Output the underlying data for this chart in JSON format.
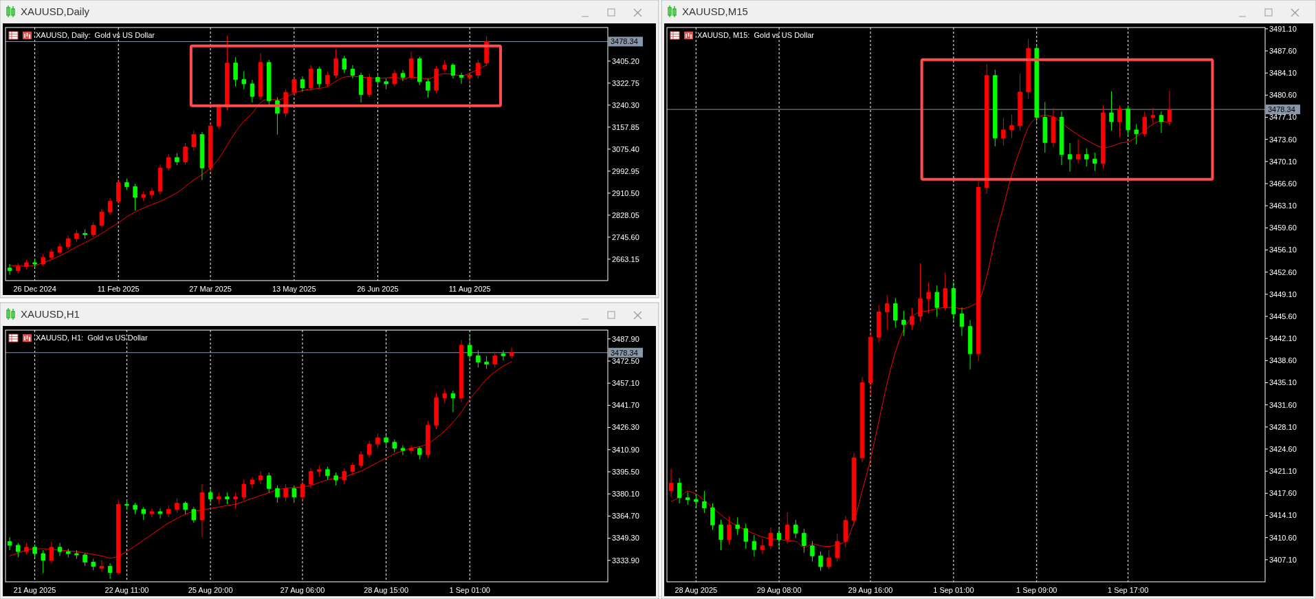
{
  "chart_data": [
    {
      "type": "candlestick",
      "title": "XAUUSD,Daily",
      "subtitle": "XAUUSD, Daily:  Gold vs US Dollar",
      "categories": [
        null,
        null,
        null,
        "26 Dec 2024",
        null,
        null,
        null,
        null,
        null,
        null,
        null,
        null,
        null,
        "11 Feb 2025",
        null,
        null,
        null,
        null,
        null,
        null,
        null,
        null,
        null,
        null,
        "27 Mar 2025",
        null,
        null,
        null,
        null,
        null,
        null,
        null,
        null,
        null,
        "13 May 2025",
        null,
        null,
        null,
        null,
        null,
        null,
        null,
        null,
        null,
        "26 Jun 2025",
        null,
        null,
        null,
        null,
        null,
        null,
        null,
        null,
        null,
        null,
        "11 Aug 2025",
        null,
        null,
        null,
        null,
        null,
        null,
        null,
        null,
        null,
        null,
        null,
        null,
        null,
        null,
        null,
        null
      ],
      "ohlc": [
        [
          2630,
          2645,
          2605,
          2620
        ],
        [
          2620,
          2648,
          2610,
          2635
        ],
        [
          2635,
          2662,
          2625,
          2650
        ],
        [
          2650,
          2665,
          2632,
          2645
        ],
        [
          2645,
          2682,
          2638,
          2670
        ],
        [
          2670,
          2702,
          2660,
          2690
        ],
        [
          2690,
          2722,
          2680,
          2710
        ],
        [
          2710,
          2752,
          2700,
          2740
        ],
        [
          2740,
          2772,
          2728,
          2760
        ],
        [
          2760,
          2775,
          2740,
          2755
        ],
        [
          2755,
          2802,
          2745,
          2790
        ],
        [
          2790,
          2852,
          2780,
          2840
        ],
        [
          2840,
          2892,
          2830,
          2880
        ],
        [
          2880,
          2962,
          2870,
          2950
        ],
        [
          2950,
          2965,
          2922,
          2935
        ],
        [
          2935,
          2945,
          2845,
          2895
        ],
        [
          2895,
          2918,
          2880,
          2905
        ],
        [
          2905,
          2930,
          2890,
          2918
        ],
        [
          2918,
          3018,
          2905,
          3005
        ],
        [
          3005,
          3058,
          2995,
          3044
        ],
        [
          3044,
          3060,
          3015,
          3028
        ],
        [
          3028,
          3098,
          3018,
          3084
        ],
        [
          3084,
          3145,
          3070,
          3130
        ],
        [
          3130,
          3140,
          2960,
          3005
        ],
        [
          3005,
          3175,
          2990,
          3162
        ],
        [
          3162,
          3245,
          3150,
          3233
        ],
        [
          3233,
          3501,
          3220,
          3398
        ],
        [
          3398,
          3420,
          3310,
          3336
        ],
        [
          3336,
          3368,
          3300,
          3320
        ],
        [
          3320,
          3335,
          3250,
          3273
        ],
        [
          3273,
          3435,
          3260,
          3400
        ],
        [
          3400,
          3410,
          3240,
          3257
        ],
        [
          3257,
          3270,
          3130,
          3210
        ],
        [
          3210,
          3300,
          3195,
          3288
        ],
        [
          3288,
          3350,
          3275,
          3336
        ],
        [
          3336,
          3348,
          3290,
          3305
        ],
        [
          3305,
          3390,
          3295,
          3375
        ],
        [
          3375,
          3385,
          3305,
          3320
        ],
        [
          3320,
          3365,
          3310,
          3352
        ],
        [
          3352,
          3450,
          3340,
          3414
        ],
        [
          3414,
          3425,
          3360,
          3375
        ],
        [
          3375,
          3390,
          3340,
          3352
        ],
        [
          3352,
          3362,
          3250,
          3280
        ],
        [
          3280,
          3358,
          3270,
          3344
        ],
        [
          3344,
          3360,
          3315,
          3328
        ],
        [
          3328,
          3340,
          3300,
          3320
        ],
        [
          3320,
          3372,
          3310,
          3359
        ],
        [
          3359,
          3372,
          3330,
          3344
        ],
        [
          3344,
          3440,
          3335,
          3414
        ],
        [
          3414,
          3422,
          3315,
          3328
        ],
        [
          3328,
          3340,
          3268,
          3296
        ],
        [
          3296,
          3388,
          3285,
          3375
        ],
        [
          3375,
          3410,
          3365,
          3390
        ],
        [
          3390,
          3398,
          3340,
          3352
        ],
        [
          3352,
          3362,
          3320,
          3344
        ],
        [
          3344,
          3365,
          3315,
          3352
        ],
        [
          3352,
          3410,
          3340,
          3398
        ],
        [
          3398,
          3498,
          3388,
          3478
        ],
        null,
        null,
        null,
        null,
        null,
        null,
        null,
        null,
        null,
        null,
        null,
        null,
        null,
        null
      ],
      "colors": [
        "#00ff00",
        "#ff0000",
        "#ff0000",
        "#00ff00",
        "#ff0000",
        "#ff0000",
        "#ff0000",
        "#ff0000",
        "#ff0000",
        "#00ff00",
        "#ff0000",
        "#ff0000",
        "#ff0000",
        "#ff0000",
        "#00ff00",
        "#00ff00",
        "#ff0000",
        "#ff0000",
        "#ff0000",
        "#ff0000",
        "#00ff00",
        "#ff0000",
        "#ff0000",
        "#00ff00",
        "#ff0000",
        "#ff0000",
        "#ff0000",
        "#00ff00",
        "#00ff00",
        "#00ff00",
        "#ff0000",
        "#00ff00",
        "#00ff00",
        "#ff0000",
        "#ff0000",
        "#00ff00",
        "#ff0000",
        "#00ff00",
        "#ff0000",
        "#ff0000",
        "#00ff00",
        "#00ff00",
        "#00ff00",
        "#ff0000",
        "#00ff00",
        "#00ff00",
        "#ff0000",
        "#00ff00",
        "#ff0000",
        "#00ff00",
        "#00ff00",
        "#ff0000",
        "#ff0000",
        "#00ff00",
        "#00ff00",
        "#ff0000",
        "#ff0000",
        "#ff0000",
        null,
        null,
        null,
        null,
        null,
        null,
        null,
        null,
        null,
        null,
        null,
        null,
        null,
        null
      ],
      "series": [
        {
          "type": "line",
          "color": "#ff0000",
          "values": [
            2640,
            2638,
            2637,
            2640,
            2650,
            2662,
            2676,
            2692,
            2710,
            2725,
            2742,
            2760,
            2780,
            2800,
            2822,
            2840,
            2855,
            2868,
            2880,
            2895,
            2912,
            2935,
            2960,
            2980,
            3005,
            3040,
            3090,
            3140,
            3180,
            3210,
            3250,
            3262,
            3260,
            3270,
            3285,
            3295,
            3300,
            3303,
            3310,
            3330,
            3345,
            3348,
            3345,
            3343,
            3340,
            3342,
            3345,
            3338,
            3345,
            3342,
            3338,
            3350,
            3358,
            3356,
            3350,
            3360,
            3375,
            3390,
            null,
            null,
            null,
            null,
            null,
            null,
            null,
            null,
            null,
            null,
            null,
            null,
            null,
            null
          ]
        }
      ],
      "ylim": [
        2583,
        3531
      ],
      "yticks": [
        {
          "value": 2663.15,
          "label": "2663.15"
        },
        {
          "value": 2745.6,
          "label": "2745.60"
        },
        {
          "value": 2828.05,
          "label": "2828.05"
        },
        {
          "value": 2910.5,
          "label": "2910.50"
        },
        {
          "value": 2992.95,
          "label": "2992.95"
        },
        {
          "value": 3075.4,
          "label": "3075.40"
        },
        {
          "value": 3157.85,
          "label": "3157.85"
        },
        {
          "value": 3240.3,
          "label": "3240.30"
        },
        {
          "value": 3322.75,
          "label": "3322.75"
        },
        {
          "value": 3405.2,
          "label": "3405.20"
        }
      ],
      "grid": "x",
      "ref_lines": [
        {
          "axis": "y",
          "value": 3478.34,
          "label": "3478.34",
          "color": "#8796a8"
        }
      ]
    },
    {
      "type": "candlestick",
      "title": "XAUUSD,H1",
      "subtitle": "XAUUSD, H1:  Gold vs US Dollar",
      "categories": [
        null,
        null,
        null,
        "21 Aug 2025",
        null,
        null,
        null,
        null,
        null,
        null,
        null,
        null,
        null,
        null,
        "22 Aug 11:00",
        null,
        null,
        null,
        null,
        null,
        null,
        null,
        null,
        null,
        "25 Aug 20:00",
        null,
        null,
        null,
        null,
        null,
        null,
        null,
        null,
        null,
        null,
        "27 Aug 06:00",
        null,
        null,
        null,
        null,
        null,
        null,
        null,
        null,
        null,
        "28 Aug 15:00",
        null,
        null,
        null,
        null,
        null,
        null,
        null,
        null,
        null,
        "1 Sep 01:00",
        null,
        null,
        null,
        null,
        null,
        null,
        null,
        null,
        null,
        null,
        null,
        null,
        null,
        null,
        null,
        null
      ],
      "ohlc": [
        [
          3347,
          3350,
          3341,
          3344.4
        ],
        [
          3344.4,
          3346,
          3336,
          3340
        ],
        [
          3340,
          3346,
          3338,
          3343
        ],
        [
          3343,
          3345,
          3336,
          3338.6
        ],
        [
          3338.6,
          3341,
          3325,
          3334
        ],
        [
          3334,
          3347,
          3332,
          3343
        ],
        [
          3343,
          3346,
          3337,
          3340
        ],
        [
          3340,
          3342,
          3336,
          3338.6
        ],
        [
          3338.6,
          3341,
          3335,
          3337.7
        ],
        [
          3337.7,
          3339,
          3330,
          3332.7
        ],
        [
          3332.7,
          3335,
          3327,
          3329.8
        ],
        [
          3328.5,
          3334,
          3326,
          3329.8
        ],
        [
          3329.8,
          3332,
          3321,
          3325.4
        ],
        [
          3325.4,
          3376,
          3324,
          3372.8
        ],
        [
          3372.8,
          3376,
          3369,
          3372.2
        ],
        [
          3372.2,
          3374,
          3366,
          3369.3
        ],
        [
          3369.3,
          3371,
          3362,
          3366.4
        ],
        [
          3366.4,
          3370,
          3364,
          3367.8
        ],
        [
          3367.8,
          3370,
          3363,
          3366.4
        ],
        [
          3366.4,
          3372,
          3364,
          3369.3
        ],
        [
          3369.3,
          3377,
          3367,
          3373.7
        ],
        [
          3373.7,
          3375,
          3366,
          3369.3
        ],
        [
          3369.3,
          3371,
          3360,
          3362
        ],
        [
          3362,
          3387,
          3350,
          3381
        ],
        [
          3381,
          3384,
          3374,
          3376.6
        ],
        [
          3376.6,
          3381,
          3373,
          3378
        ],
        [
          3378,
          3381,
          3373,
          3376.6
        ],
        [
          3376.6,
          3381,
          3370,
          3378
        ],
        [
          3378,
          3390,
          3376,
          3386.9
        ],
        [
          3386.9,
          3392,
          3384,
          3389.8
        ],
        [
          3389.8,
          3396,
          3387,
          3392.7
        ],
        [
          3392.7,
          3395,
          3381,
          3383.9
        ],
        [
          3383.9,
          3386,
          3374,
          3378
        ],
        [
          3378,
          3387,
          3375,
          3383.9
        ],
        [
          3383.9,
          3386,
          3374,
          3378
        ],
        [
          3378,
          3389,
          3375,
          3386.9
        ],
        [
          3386.9,
          3398,
          3384,
          3395.7
        ],
        [
          3395.7,
          3400,
          3392,
          3397
        ],
        [
          3397,
          3399,
          3390,
          3392.7
        ],
        [
          3392.7,
          3395,
          3386,
          3389.8
        ],
        [
          3389.8,
          3398,
          3387,
          3395.7
        ],
        [
          3395.7,
          3402,
          3393,
          3400
        ],
        [
          3400,
          3410,
          3398,
          3407.4
        ],
        [
          3407.4,
          3417,
          3405,
          3414.7
        ],
        [
          3414.7,
          3422,
          3412,
          3419.1
        ],
        [
          3419.1,
          3421,
          3413,
          3416.1
        ],
        [
          3416.1,
          3418,
          3409,
          3411.8
        ],
        [
          3411.8,
          3414,
          3407,
          3410.3
        ],
        [
          3410.3,
          3414,
          3408,
          3411.8
        ],
        [
          3411.8,
          3413,
          3404,
          3407.4
        ],
        [
          3407.4,
          3431,
          3405,
          3427.9
        ],
        [
          3427.9,
          3450,
          3425,
          3446.9
        ],
        [
          3446.9,
          3453,
          3443,
          3449.8
        ],
        [
          3449.8,
          3452,
          3437,
          3446.9
        ],
        [
          3446.9,
          3487,
          3444,
          3483.5
        ],
        [
          3483.5,
          3491,
          3473,
          3476.2
        ],
        [
          3476.2,
          3480,
          3468,
          3471.8
        ],
        [
          3471.8,
          3476,
          3467,
          3470.3
        ],
        [
          3470.3,
          3479,
          3468,
          3476.2
        ],
        [
          3477.5,
          3480,
          3473,
          3476.2
        ],
        [
          3476.2,
          3482,
          3474,
          3478.34
        ],
        null,
        null,
        null,
        null,
        null,
        null,
        null,
        null,
        null,
        null,
        null
      ],
      "colors": [
        "#00ff00",
        "#00ff00",
        "#ff0000",
        "#00ff00",
        "#00ff00",
        "#ff0000",
        "#00ff00",
        "#00ff00",
        "#00ff00",
        "#00ff00",
        "#00ff00",
        "#ff0000",
        "#00ff00",
        "#ff0000",
        "#00ff00",
        "#00ff00",
        "#00ff00",
        "#ff0000",
        "#00ff00",
        "#ff0000",
        "#ff0000",
        "#00ff00",
        "#00ff00",
        "#ff0000",
        "#00ff00",
        "#ff0000",
        "#00ff00",
        "#ff0000",
        "#ff0000",
        "#ff0000",
        "#ff0000",
        "#00ff00",
        "#00ff00",
        "#ff0000",
        "#00ff00",
        "#ff0000",
        "#ff0000",
        "#ff0000",
        "#00ff00",
        "#00ff00",
        "#ff0000",
        "#ff0000",
        "#ff0000",
        "#ff0000",
        "#ff0000",
        "#00ff00",
        "#00ff00",
        "#00ff00",
        "#ff0000",
        "#00ff00",
        "#ff0000",
        "#ff0000",
        "#ff0000",
        "#00ff00",
        "#ff0000",
        "#00ff00",
        "#00ff00",
        "#00ff00",
        "#ff0000",
        "#00ff00",
        "#ff0000",
        null,
        null,
        null,
        null,
        null,
        null,
        null,
        null,
        null,
        null,
        null
      ],
      "series": [
        {
          "type": "line",
          "color": "#ff0000",
          "values": [
            3337,
            3339,
            3341,
            3342,
            3342,
            3341.5,
            3341,
            3340.5,
            3340,
            3339,
            3338,
            3337,
            3335.5,
            3337,
            3340,
            3344,
            3348,
            3352,
            3356,
            3360,
            3363,
            3366,
            3368,
            3369,
            3370,
            3371,
            3372,
            3373,
            3375,
            3377,
            3379,
            3381,
            3383,
            3384,
            3384.5,
            3385,
            3386,
            3388,
            3390,
            3391,
            3392,
            3394,
            3396,
            3399,
            3402,
            3405,
            3408,
            3410,
            3412,
            3413,
            3415,
            3419,
            3424,
            3430,
            3437,
            3446,
            3453,
            3460,
            3465,
            3469,
            3472,
            null,
            null,
            null,
            null,
            null,
            null,
            null,
            null,
            null,
            null,
            null
          ]
        }
      ],
      "ylim": [
        3319,
        3494
      ],
      "yticks": [
        {
          "value": 3333.9,
          "label": "3333.90"
        },
        {
          "value": 3349.3,
          "label": "3349.30"
        },
        {
          "value": 3364.7,
          "label": "3364.70"
        },
        {
          "value": 3380.1,
          "label": "3380.10"
        },
        {
          "value": 3395.5,
          "label": "3395.50"
        },
        {
          "value": 3410.9,
          "label": "3410.90"
        },
        {
          "value": 3426.3,
          "label": "3426.30"
        },
        {
          "value": 3441.7,
          "label": "3441.70"
        },
        {
          "value": 3457.1,
          "label": "3457.10"
        },
        {
          "value": 3472.5,
          "label": "3472.50"
        },
        {
          "value": 3487.9,
          "label": "3487.90"
        }
      ],
      "grid": "x",
      "ref_lines": [
        {
          "axis": "y",
          "value": 3478.34,
          "label": "3478.34",
          "color": "#8796a8"
        }
      ]
    },
    {
      "type": "candlestick",
      "title": "XAUUSD,M15",
      "subtitle": "XAUUSD, M15:  Gold vs US Dollar",
      "categories": [
        null,
        null,
        null,
        "28 Aug 2025",
        null,
        null,
        null,
        null,
        null,
        null,
        null,
        null,
        null,
        "29 Aug 08:00",
        null,
        null,
        null,
        null,
        null,
        null,
        null,
        null,
        null,
        null,
        "29 Aug 16:00",
        null,
        null,
        null,
        null,
        null,
        null,
        null,
        null,
        null,
        "1 Sep 01:00",
        null,
        null,
        null,
        null,
        null,
        null,
        null,
        null,
        null,
        "1 Sep 09:00",
        null,
        null,
        null,
        null,
        null,
        null,
        null,
        null,
        null,
        null,
        "1 Sep 17:00",
        null,
        null,
        null,
        null,
        null,
        null,
        null,
        null,
        null,
        null,
        null,
        null,
        null,
        null,
        null,
        null
      ],
      "ohlc": [
        [
          3418,
          3421.5,
          3417,
          3419.2
        ],
        [
          3419.2,
          3420,
          3416,
          3416.9
        ],
        [
          3416.9,
          3417.8,
          3415.8,
          3416.6
        ],
        [
          3416.6,
          3417.4,
          3415.5,
          3416.3
        ],
        [
          3416.3,
          3418,
          3414.5,
          3415.3
        ],
        [
          3415.3,
          3416,
          3411.8,
          3412.6
        ],
        [
          3412.6,
          3413.4,
          3408.6,
          3410.3
        ],
        [
          3410.3,
          3414,
          3409.5,
          3412.6
        ],
        [
          3412.6,
          3413.8,
          3411,
          3412
        ],
        [
          3412,
          3412.8,
          3408.8,
          3410
        ],
        [
          3410,
          3411,
          3407.6,
          3408.7
        ],
        [
          3408.7,
          3410.4,
          3408,
          3409.3
        ],
        [
          3409.3,
          3412.2,
          3408.8,
          3411.3
        ],
        [
          3411.3,
          3412,
          3409,
          3410.3
        ],
        [
          3410.3,
          3414.6,
          3409.6,
          3412.6
        ],
        [
          3412.6,
          3413.4,
          3410.5,
          3411.3
        ],
        [
          3411.3,
          3412,
          3408.2,
          3409.3
        ],
        [
          3409.3,
          3410,
          3406.8,
          3407.7
        ],
        [
          3407.7,
          3408.4,
          3405.3,
          3406
        ],
        [
          3406,
          3408.6,
          3405.6,
          3407.4
        ],
        [
          3407.4,
          3411.2,
          3406.8,
          3410
        ],
        [
          3410,
          3414,
          3409,
          3413.3
        ],
        [
          3413.3,
          3424,
          3412.5,
          3423.2
        ],
        [
          3423.2,
          3436,
          3422.5,
          3435.1
        ],
        [
          3435.1,
          3443.3,
          3433,
          3442.3
        ],
        [
          3442.3,
          3447.4,
          3441.5,
          3446.3
        ],
        [
          3446.3,
          3449,
          3443.5,
          3447.6
        ],
        [
          3447.6,
          3448.5,
          3443.8,
          3445
        ],
        [
          3445,
          3446.5,
          3442.5,
          3444.3
        ],
        [
          3444.3,
          3447,
          3443.5,
          3445.6
        ],
        [
          3445.6,
          3454,
          3444.8,
          3448.4
        ],
        [
          3448.4,
          3451,
          3446,
          3449.4
        ],
        [
          3449.4,
          3450.5,
          3445.5,
          3447
        ],
        [
          3447,
          3452.5,
          3446.5,
          3450
        ],
        [
          3450,
          3451,
          3445,
          3446
        ],
        [
          3446,
          3447,
          3442.5,
          3444
        ],
        [
          3444,
          3445,
          3437.2,
          3439.7
        ],
        [
          3439.7,
          3467,
          3438.5,
          3466
        ],
        [
          3466,
          3485.5,
          3465,
          3483.7
        ],
        [
          3483.7,
          3484.6,
          3472.5,
          3473.8
        ],
        [
          3473.8,
          3477,
          3472.6,
          3475.1
        ],
        [
          3475.1,
          3477.5,
          3473.8,
          3475.8
        ],
        [
          3475.8,
          3484,
          3475,
          3481.1
        ],
        [
          3481.1,
          3489.5,
          3480,
          3488
        ],
        [
          3488,
          3488.6,
          3476,
          3477.1
        ],
        [
          3477.1,
          3479.5,
          3471.5,
          3473.1
        ],
        [
          3473.1,
          3478.6,
          3472.4,
          3477.1
        ],
        [
          3477.1,
          3478,
          3469.5,
          3471.2
        ],
        [
          3471.2,
          3473,
          3468.5,
          3470.5
        ],
        [
          3470.5,
          3473.6,
          3469.8,
          3471.2
        ],
        [
          3471.2,
          3472.2,
          3469.3,
          3470.5
        ],
        [
          3470.5,
          3471.5,
          3468.6,
          3469.8
        ],
        [
          3469.8,
          3479,
          3469,
          3477.8
        ],
        [
          3477.8,
          3481.2,
          3475,
          3476.4
        ],
        [
          3476.4,
          3479,
          3474,
          3478.4
        ],
        [
          3478.4,
          3479,
          3474.2,
          3475.1
        ],
        [
          3475.1,
          3476,
          3472.8,
          3474.5
        ],
        [
          3474.5,
          3478,
          3474,
          3477.1
        ],
        [
          3477.1,
          3478.6,
          3476,
          3477.4
        ],
        [
          3477.4,
          3478,
          3474.6,
          3476.4
        ],
        [
          3476.4,
          3481.3,
          3475.8,
          3478.34
        ],
        null,
        null,
        null,
        null,
        null,
        null,
        null,
        null,
        null,
        null,
        null
      ],
      "colors": [
        "#ff0000",
        "#00ff00",
        "#00ff00",
        "#00ff00",
        "#00ff00",
        "#00ff00",
        "#00ff00",
        "#ff0000",
        "#00ff00",
        "#00ff00",
        "#00ff00",
        "#ff0000",
        "#ff0000",
        "#00ff00",
        "#ff0000",
        "#00ff00",
        "#00ff00",
        "#00ff00",
        "#00ff00",
        "#ff0000",
        "#ff0000",
        "#ff0000",
        "#ff0000",
        "#ff0000",
        "#ff0000",
        "#ff0000",
        "#ff0000",
        "#00ff00",
        "#00ff00",
        "#ff0000",
        "#ff0000",
        "#ff0000",
        "#00ff00",
        "#ff0000",
        "#00ff00",
        "#00ff00",
        "#00ff00",
        "#ff0000",
        "#ff0000",
        "#00ff00",
        "#ff0000",
        "#ff0000",
        "#ff0000",
        "#ff0000",
        "#00ff00",
        "#00ff00",
        "#ff0000",
        "#00ff00",
        "#00ff00",
        "#ff0000",
        "#00ff00",
        "#00ff00",
        "#ff0000",
        "#00ff00",
        "#ff0000",
        "#00ff00",
        "#00ff00",
        "#ff0000",
        "#ff0000",
        "#00ff00",
        "#ff0000",
        null,
        null,
        null,
        null,
        null,
        null,
        null,
        null,
        null,
        null,
        null
      ],
      "series": [
        {
          "type": "line",
          "color": "#ff0000",
          "values": [
            3416.3,
            3417,
            3417.9,
            3417.5,
            3416.5,
            3415.3,
            3414.2,
            3413.2,
            3412.4,
            3411.8,
            3411.2,
            3410.7,
            3410.4,
            3410.3,
            3410.1,
            3410,
            3409,
            3409.6,
            3409.3,
            3409.2,
            3409.5,
            3410,
            3413,
            3418,
            3423,
            3429,
            3435,
            3440,
            3443.5,
            3445.5,
            3446.3,
            3446.5,
            3446.8,
            3447,
            3447,
            3446.8,
            3447.2,
            3448,
            3452,
            3458,
            3463,
            3468,
            3472,
            3475.5,
            3477,
            3477.4,
            3477.2,
            3476.2,
            3475.2,
            3474.3,
            3473.5,
            3472.8,
            3472.3,
            3472.5,
            3473,
            3473.2,
            3474,
            3475,
            3476,
            3476.5,
            3476.1,
            null,
            null,
            null,
            null,
            null,
            null,
            null,
            null,
            null,
            null,
            null
          ]
        }
      ],
      "ylim": [
        3403.6,
        3491.3
      ],
      "yticks": [
        {
          "value": 3407.1,
          "label": "3407.10"
        },
        {
          "value": 3410.6,
          "label": "3410.60"
        },
        {
          "value": 3414.1,
          "label": "3414.10"
        },
        {
          "value": 3417.6,
          "label": "3417.60"
        },
        {
          "value": 3421.1,
          "label": "3421.10"
        },
        {
          "value": 3424.6,
          "label": "3424.60"
        },
        {
          "value": 3428.1,
          "label": "3428.10"
        },
        {
          "value": 3431.6,
          "label": "3431.60"
        },
        {
          "value": 3435.1,
          "label": "3435.10"
        },
        {
          "value": 3438.6,
          "label": "3438.60"
        },
        {
          "value": 3442.1,
          "label": "3442.10"
        },
        {
          "value": 3445.6,
          "label": "3445.60"
        },
        {
          "value": 3449.1,
          "label": "3449.10"
        },
        {
          "value": 3452.6,
          "label": "3452.60"
        },
        {
          "value": 3456.1,
          "label": "3456.10"
        },
        {
          "value": 3459.6,
          "label": "3459.60"
        },
        {
          "value": 3463.1,
          "label": "3463.10"
        },
        {
          "value": 3466.6,
          "label": "3466.60"
        },
        {
          "value": 3470.1,
          "label": "3470.10"
        },
        {
          "value": 3473.6,
          "label": "3473.60"
        },
        {
          "value": 3477.1,
          "label": "3477.10"
        },
        {
          "value": 3480.6,
          "label": "3480.60"
        },
        {
          "value": 3484.1,
          "label": "3484.10"
        },
        {
          "value": 3487.6,
          "label": "3487.60"
        },
        {
          "value": 3491.1,
          "label": "3491.10"
        }
      ],
      "grid": "x",
      "ref_lines": [
        {
          "axis": "y",
          "value": 3478.34,
          "label": "3478.34",
          "color": "#8796a8"
        }
      ]
    }
  ]
}
